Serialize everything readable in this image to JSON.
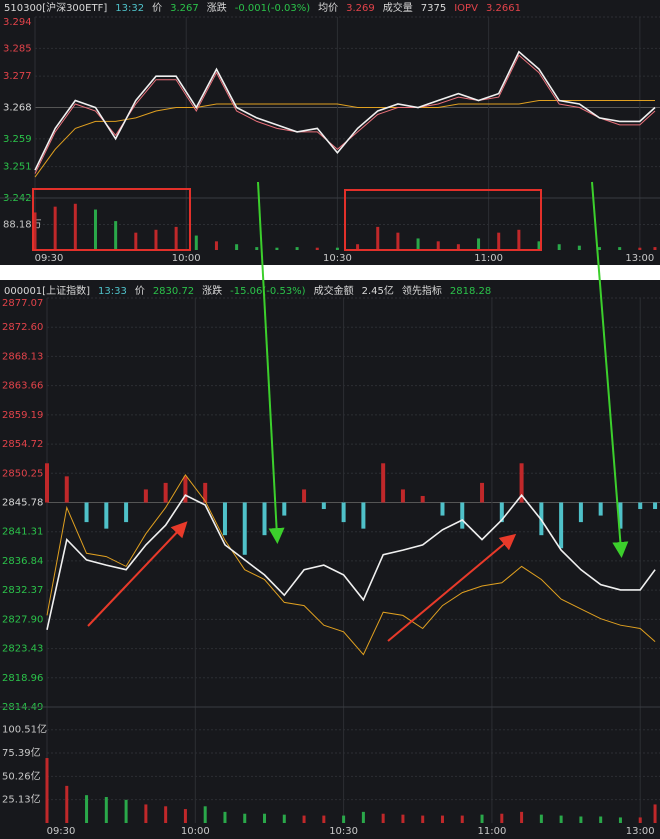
{
  "chart_data": [
    {
      "type": "line",
      "header": [
        {
          "text": "510300[沪深300ETF]",
          "color": "#d8d8d8"
        },
        {
          "text": "13:32",
          "color": "#4fc1c9"
        },
        {
          "text": "价",
          "color": "#d8d8d8"
        },
        {
          "text": "3.267",
          "color": "#2bc24a"
        },
        {
          "text": "涨跌",
          "color": "#d8d8d8"
        },
        {
          "text": "-0.001(-0.03%)",
          "color": "#2bc24a"
        },
        {
          "text": "均价",
          "color": "#d8d8d8"
        },
        {
          "text": "3.269",
          "color": "#e2434a"
        },
        {
          "text": "成交量",
          "color": "#d8d8d8"
        },
        {
          "text": "7375",
          "color": "#d8d8d8"
        },
        {
          "text": "IOPV",
          "color": "#e2434a"
        },
        {
          "text": "3.2661",
          "color": "#e2434a"
        }
      ],
      "x": [
        0,
        4,
        8,
        12,
        16,
        20,
        24,
        28,
        32,
        36,
        40,
        44,
        48,
        52,
        56,
        60,
        64,
        68,
        72,
        76,
        80,
        84,
        88,
        92,
        96,
        100,
        104,
        108,
        112,
        116,
        120,
        123
      ],
      "xlim": [
        0,
        124
      ],
      "xticks": [
        {
          "value": 0,
          "label": "09:30"
        },
        {
          "value": 30,
          "label": "10:00"
        },
        {
          "value": 60,
          "label": "10:30"
        },
        {
          "value": 90,
          "label": "11:00"
        },
        {
          "value": 120,
          "label": "13:00"
        }
      ],
      "ylim": [
        3.242,
        3.294
      ],
      "yticks": [
        3.294,
        3.285,
        3.277,
        3.268,
        3.259,
        3.251,
        3.242
      ],
      "base": 3.268,
      "series": [
        {
          "color": "#f0f0f0",
          "values": [
            3.25,
            3.262,
            3.27,
            3.268,
            3.259,
            3.27,
            3.277,
            3.277,
            3.268,
            3.279,
            3.268,
            3.265,
            3.263,
            3.261,
            3.262,
            3.255,
            3.262,
            3.267,
            3.269,
            3.268,
            3.27,
            3.272,
            3.27,
            3.272,
            3.284,
            3.279,
            3.27,
            3.269,
            3.265,
            3.264,
            3.264,
            3.268
          ]
        },
        {
          "color": "#e8707a",
          "values": [
            3.249,
            3.261,
            3.269,
            3.267,
            3.26,
            3.269,
            3.276,
            3.276,
            3.267,
            3.278,
            3.267,
            3.264,
            3.262,
            3.261,
            3.261,
            3.256,
            3.261,
            3.266,
            3.268,
            3.268,
            3.269,
            3.271,
            3.27,
            3.271,
            3.283,
            3.278,
            3.269,
            3.268,
            3.265,
            3.263,
            3.263,
            3.267
          ]
        },
        {
          "color": "#e0a020",
          "values": [
            3.248,
            3.256,
            3.262,
            3.264,
            3.264,
            3.265,
            3.267,
            3.268,
            3.268,
            3.269,
            3.269,
            3.269,
            3.269,
            3.269,
            3.269,
            3.269,
            3.268,
            3.268,
            3.268,
            3.268,
            3.268,
            3.269,
            3.269,
            3.269,
            3.269,
            3.27,
            3.27,
            3.27,
            3.27,
            3.27,
            3.27,
            3.27
          ]
        }
      ],
      "volume": {
        "ylim": [
          0,
          180
        ],
        "yticks": [
          {
            "value": 88.18,
            "label": "88.18万"
          }
        ],
        "up_color": "#c0282a",
        "down_color": "#2aa84a",
        "values": [
          130,
          150,
          160,
          140,
          100,
          60,
          70,
          80,
          50,
          30,
          20,
          10,
          8,
          10,
          8,
          8,
          20,
          80,
          60,
          40,
          30,
          20,
          40,
          60,
          70,
          30,
          20,
          15,
          10,
          10,
          8,
          10
        ]
      }
    },
    {
      "type": "line",
      "header": [
        {
          "text": "000001[上证指数]",
          "color": "#d8d8d8"
        },
        {
          "text": "13:33",
          "color": "#4fc1c9"
        },
        {
          "text": "价",
          "color": "#d8d8d8"
        },
        {
          "text": "2830.72",
          "color": "#2bc24a"
        },
        {
          "text": "涨跌",
          "color": "#d8d8d8"
        },
        {
          "text": "-15.06(-0.53%)",
          "color": "#2bc24a"
        },
        {
          "text": "成交金额",
          "color": "#d8d8d8"
        },
        {
          "text": "2.45亿",
          "color": "#d8d8d8"
        },
        {
          "text": "领先指标",
          "color": "#d8d8d8"
        },
        {
          "text": "2818.28",
          "color": "#2bc24a"
        }
      ],
      "x": [
        0,
        4,
        8,
        12,
        16,
        20,
        24,
        28,
        32,
        36,
        40,
        44,
        48,
        52,
        56,
        60,
        64,
        68,
        72,
        76,
        80,
        84,
        88,
        92,
        96,
        100,
        104,
        108,
        112,
        116,
        120,
        123
      ],
      "xlim": [
        0,
        124
      ],
      "xticks": [
        {
          "value": 0,
          "label": "09:30"
        },
        {
          "value": 30,
          "label": "10:00"
        },
        {
          "value": 60,
          "label": "10:30"
        },
        {
          "value": 90,
          "label": "11:00"
        },
        {
          "value": 120,
          "label": "13:00"
        }
      ],
      "ylim": [
        2814.49,
        2877.07
      ],
      "yticks": [
        2877.07,
        {
          "value": 2872.6,
          "label": "2872.60"
        },
        2868.13,
        2863.66,
        2859.19,
        2854.72,
        2850.25,
        2845.78,
        2841.31,
        2836.84,
        2832.37,
        {
          "value": 2827.9,
          "label": "2827.90"
        },
        2823.43,
        2818.96,
        2814.49
      ],
      "base": 2845.78,
      "indicator": {
        "up_color": "#c0282a",
        "down_color": "#4fc1c9",
        "values": [
          6,
          4,
          -3,
          -4,
          -3,
          2,
          3,
          4,
          3,
          -5,
          -8,
          -5,
          -2,
          2,
          -1,
          -3,
          -4,
          6,
          2,
          1,
          -2,
          -4,
          3,
          -3,
          6,
          -5,
          -7,
          -3,
          -2,
          -4,
          -1,
          -1
        ]
      },
      "series": [
        {
          "color": "#f0f0f0",
          "values": [
            2826.3,
            2840.1,
            2837.0,
            2836.2,
            2835.5,
            2839.3,
            2842.3,
            2846.9,
            2845.4,
            2839.3,
            2837.0,
            2834.7,
            2831.6,
            2835.5,
            2836.2,
            2834.7,
            2830.9,
            2837.8,
            2838.5,
            2839.3,
            2841.6,
            2843.1,
            2840.1,
            2843.1,
            2846.9,
            2843.1,
            2838.5,
            2835.5,
            2833.2,
            2832.4,
            2832.4,
            2835.5
          ]
        },
        {
          "color": "#e0a020",
          "values": [
            2828.5,
            2845.0,
            2838.0,
            2837.5,
            2836.0,
            2841.0,
            2845.0,
            2850.0,
            2846.0,
            2840.0,
            2835.5,
            2834.0,
            2830.5,
            2830.0,
            2827.0,
            2826.0,
            2822.5,
            2829.0,
            2828.5,
            2826.5,
            2830.0,
            2832.0,
            2833.0,
            2833.5,
            2836.0,
            2834.0,
            2831.0,
            2829.5,
            2828.0,
            2827.0,
            2826.5,
            2824.5
          ]
        }
      ],
      "volume": {
        "ylim": [
          0,
          125
        ],
        "yticks": [
          {
            "value": 100.51,
            "label": "100.51亿"
          },
          {
            "value": 75.39,
            "label": "75.39亿"
          },
          {
            "value": 50.26,
            "label": "50.26亿"
          },
          {
            "value": 25.13,
            "label": "25.13亿"
          }
        ],
        "up_color": "#c0282a",
        "down_color": "#2aa84a",
        "values": [
          70,
          40,
          30,
          28,
          25,
          20,
          18,
          15,
          18,
          12,
          10,
          10,
          9,
          8,
          8,
          8,
          12,
          10,
          9,
          8,
          8,
          8,
          9,
          10,
          12,
          9,
          8,
          7,
          7,
          6,
          6,
          20
        ]
      }
    }
  ]
}
